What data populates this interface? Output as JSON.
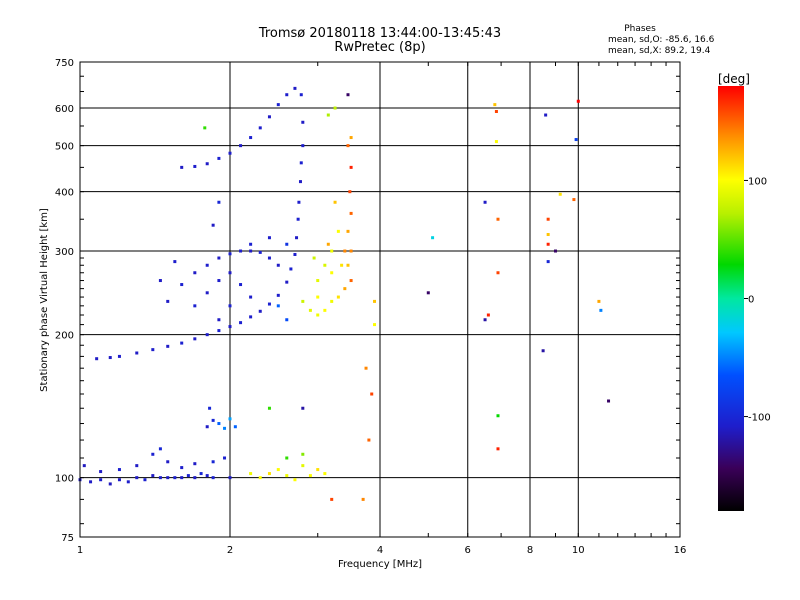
{
  "header": {
    "title": "Tromsø 20180118 13:44:00-13:45:43",
    "subtitle": "RwPretec (8p)"
  },
  "phases_box": {
    "title": "Phases",
    "o_line": "mean, sd,O: -85.6, 16.6",
    "x_line": "mean, sd,X: 89.2, 19.4"
  },
  "colorbar": {
    "unit": "[deg]",
    "range": [
      -180,
      180
    ],
    "ticks": [
      {
        "value": 100,
        "label": "100"
      },
      {
        "value": 0,
        "label": "0"
      },
      {
        "value": -100,
        "label": "-100"
      }
    ]
  },
  "chart_data": {
    "type": "scatter",
    "title": "Tromsø 20180118 13:44:00-13:45:43",
    "subtitle": "RwPretec (8p)",
    "xlabel": "Frequency [MHz]",
    "ylabel": "Stationary phase Virtual Height [km]",
    "x_scale": "log",
    "y_scale": "log",
    "xlim": [
      1,
      16
    ],
    "ylim": [
      75,
      750
    ],
    "x_ticks": [
      1,
      2,
      4,
      6,
      8,
      10,
      16
    ],
    "y_ticks": [
      75,
      100,
      200,
      300,
      400,
      500,
      600,
      750
    ],
    "grid": true,
    "color_variable": "phase [deg]",
    "color_range": [
      -180,
      180
    ],
    "series": [
      {
        "points": [
          [
            1.0,
            99,
            -110
          ],
          [
            1.05,
            98,
            -110
          ],
          [
            1.1,
            99,
            -108
          ],
          [
            1.15,
            97,
            -112
          ],
          [
            1.2,
            99,
            -110
          ],
          [
            1.25,
            98,
            -108
          ],
          [
            1.3,
            100,
            -110
          ],
          [
            1.35,
            99,
            -105
          ],
          [
            1.4,
            101,
            -110
          ],
          [
            1.45,
            100,
            -108
          ],
          [
            1.5,
            100,
            -110
          ],
          [
            1.55,
            100,
            -106
          ],
          [
            1.6,
            100,
            -110
          ],
          [
            1.65,
            101,
            -105
          ],
          [
            1.7,
            100,
            -110
          ],
          [
            1.75,
            102,
            -100
          ],
          [
            1.8,
            101,
            -108
          ],
          [
            1.85,
            100,
            -105
          ],
          [
            1.1,
            103,
            -110
          ],
          [
            1.2,
            104,
            -105
          ],
          [
            1.3,
            106,
            -110
          ],
          [
            1.4,
            112,
            -105
          ],
          [
            1.45,
            115,
            -100
          ],
          [
            1.5,
            108,
            -110
          ],
          [
            1.6,
            105,
            -108
          ],
          [
            1.7,
            107,
            -110
          ],
          [
            1.85,
            108,
            -100
          ],
          [
            1.95,
            110,
            -105
          ],
          [
            2.0,
            100,
            -110
          ],
          [
            1.02,
            106,
            -112
          ]
        ]
      },
      {
        "points": [
          [
            1.08,
            178,
            -110
          ],
          [
            1.15,
            179,
            -110
          ],
          [
            1.2,
            180,
            -108
          ],
          [
            1.3,
            183,
            -110
          ],
          [
            1.4,
            186,
            -108
          ],
          [
            1.5,
            189,
            -110
          ],
          [
            1.6,
            192,
            -105
          ],
          [
            1.7,
            196,
            -110
          ],
          [
            1.8,
            200,
            -108
          ],
          [
            1.9,
            204,
            -105
          ],
          [
            2.0,
            208,
            -110
          ],
          [
            2.1,
            212,
            -105
          ],
          [
            2.2,
            218,
            -108
          ],
          [
            2.3,
            224,
            -110
          ],
          [
            2.4,
            232,
            -105
          ],
          [
            2.5,
            242,
            -108
          ],
          [
            2.6,
            258,
            -110
          ],
          [
            2.65,
            275,
            -105
          ],
          [
            2.7,
            295,
            -108
          ],
          [
            2.72,
            320,
            -110
          ],
          [
            2.74,
            350,
            -105
          ],
          [
            2.75,
            380,
            -108
          ],
          [
            2.77,
            420,
            -110
          ],
          [
            2.78,
            460,
            -105
          ],
          [
            2.8,
            500,
            -108
          ],
          [
            2.8,
            560,
            -110
          ],
          [
            2.78,
            640,
            -105
          ]
        ]
      },
      {
        "points": [
          [
            1.6,
            450,
            -110
          ],
          [
            1.7,
            452,
            -108
          ],
          [
            1.8,
            458,
            -110
          ],
          [
            1.9,
            470,
            -105
          ],
          [
            2.0,
            482,
            -108
          ],
          [
            2.1,
            500,
            -110
          ],
          [
            2.2,
            520,
            -105
          ],
          [
            2.3,
            545,
            -108
          ],
          [
            2.4,
            575,
            -110
          ],
          [
            2.5,
            610,
            -105
          ],
          [
            2.6,
            640,
            -108
          ],
          [
            2.7,
            660,
            -110
          ],
          [
            1.78,
            545,
            40
          ]
        ]
      },
      {
        "points": [
          [
            1.5,
            235,
            -110
          ],
          [
            1.6,
            255,
            -105
          ],
          [
            1.7,
            270,
            -110
          ],
          [
            1.8,
            280,
            -108
          ],
          [
            1.9,
            290,
            -110
          ],
          [
            2.0,
            296,
            -105
          ],
          [
            2.1,
            300,
            -108
          ],
          [
            2.2,
            300,
            -110
          ],
          [
            2.3,
            298,
            -105
          ],
          [
            2.4,
            290,
            -108
          ],
          [
            2.5,
            280,
            -110
          ],
          [
            1.7,
            230,
            -105
          ],
          [
            1.8,
            245,
            -110
          ],
          [
            1.9,
            260,
            -108
          ],
          [
            2.0,
            270,
            -110
          ],
          [
            2.1,
            255,
            -105
          ],
          [
            2.2,
            240,
            -108
          ],
          [
            1.9,
            215,
            -110
          ],
          [
            2.0,
            230,
            -105
          ],
          [
            1.45,
            260,
            -110
          ],
          [
            1.55,
            285,
            -108
          ],
          [
            1.85,
            340,
            -110
          ],
          [
            1.9,
            380,
            -100
          ],
          [
            2.2,
            310,
            -105
          ],
          [
            2.4,
            320,
            -108
          ],
          [
            2.6,
            310,
            -90
          ],
          [
            2.5,
            230,
            -60
          ],
          [
            2.6,
            215,
            -70
          ]
        ]
      },
      {
        "points": [
          [
            2.8,
            235,
            80
          ],
          [
            2.9,
            225,
            90
          ],
          [
            3.0,
            220,
            95
          ],
          [
            3.1,
            225,
            100
          ],
          [
            3.2,
            235,
            95
          ],
          [
            3.3,
            240,
            110
          ],
          [
            3.4,
            250,
            130
          ],
          [
            3.5,
            260,
            150
          ],
          [
            3.45,
            280,
            120
          ],
          [
            3.5,
            300,
            140
          ],
          [
            3.45,
            330,
            130
          ],
          [
            3.5,
            360,
            150
          ],
          [
            3.48,
            400,
            160
          ],
          [
            3.5,
            450,
            170
          ],
          [
            3.45,
            500,
            150
          ],
          [
            3.5,
            520,
            130
          ],
          [
            3.0,
            260,
            90
          ],
          [
            3.1,
            280,
            85
          ],
          [
            3.2,
            300,
            95
          ],
          [
            3.0,
            240,
            100
          ],
          [
            3.3,
            330,
            100
          ],
          [
            3.25,
            380,
            120
          ],
          [
            3.35,
            280,
            110
          ],
          [
            3.2,
            270,
            100
          ],
          [
            2.95,
            290,
            80
          ],
          [
            3.15,
            310,
            130
          ],
          [
            3.4,
            300,
            140
          ],
          [
            3.15,
            580,
            70
          ],
          [
            3.25,
            600,
            75
          ],
          [
            3.45,
            640,
            -140
          ]
        ]
      },
      {
        "points": [
          [
            1.8,
            128,
            -110
          ],
          [
            1.85,
            132,
            -100
          ],
          [
            1.9,
            130,
            -60
          ],
          [
            1.95,
            127,
            -50
          ],
          [
            2.0,
            133,
            -40
          ],
          [
            2.05,
            128,
            -60
          ],
          [
            1.82,
            140,
            -100
          ]
        ]
      },
      {
        "points": [
          [
            2.3,
            100,
            100
          ],
          [
            2.4,
            102,
            110
          ],
          [
            2.5,
            104,
            100
          ],
          [
            2.6,
            101,
            95
          ],
          [
            2.7,
            99,
            100
          ],
          [
            2.8,
            106,
            90
          ],
          [
            2.9,
            101,
            100
          ],
          [
            3.0,
            104,
            110
          ],
          [
            3.1,
            102,
            100
          ],
          [
            2.2,
            102,
            95
          ],
          [
            2.6,
            110,
            40
          ],
          [
            2.8,
            112,
            60
          ],
          [
            3.2,
            90,
            160
          ],
          [
            2.4,
            140,
            40
          ],
          [
            2.8,
            140,
            -120
          ]
        ]
      },
      {
        "points": [
          [
            3.7,
            90,
            140
          ],
          [
            3.8,
            120,
            150
          ],
          [
            3.9,
            210,
            100
          ],
          [
            3.9,
            235,
            120
          ],
          [
            3.85,
            150,
            160
          ],
          [
            3.75,
            170,
            140
          ],
          [
            5.1,
            320,
            -20
          ],
          [
            5.0,
            245,
            -140
          ],
          [
            6.5,
            380,
            -110
          ],
          [
            6.6,
            220,
            170
          ],
          [
            6.5,
            215,
            -120
          ],
          [
            6.9,
            350,
            150
          ],
          [
            6.9,
            270,
            160
          ],
          [
            6.8,
            610,
            120
          ],
          [
            6.85,
            590,
            160
          ],
          [
            6.85,
            510,
            100
          ],
          [
            6.9,
            135,
            30
          ],
          [
            6.9,
            115,
            170
          ],
          [
            8.6,
            580,
            -110
          ],
          [
            8.7,
            350,
            160
          ],
          [
            8.7,
            310,
            170
          ],
          [
            8.7,
            285,
            -100
          ],
          [
            8.5,
            185,
            -120
          ],
          [
            9.0,
            300,
            -140
          ],
          [
            9.2,
            395,
            110
          ],
          [
            9.8,
            385,
            150
          ],
          [
            10.0,
            620,
            180
          ],
          [
            9.9,
            515,
            -80
          ],
          [
            11.0,
            235,
            130
          ],
          [
            11.1,
            225,
            -50
          ],
          [
            11.5,
            145,
            -140
          ],
          [
            8.7,
            325,
            120
          ]
        ]
      }
    ]
  }
}
